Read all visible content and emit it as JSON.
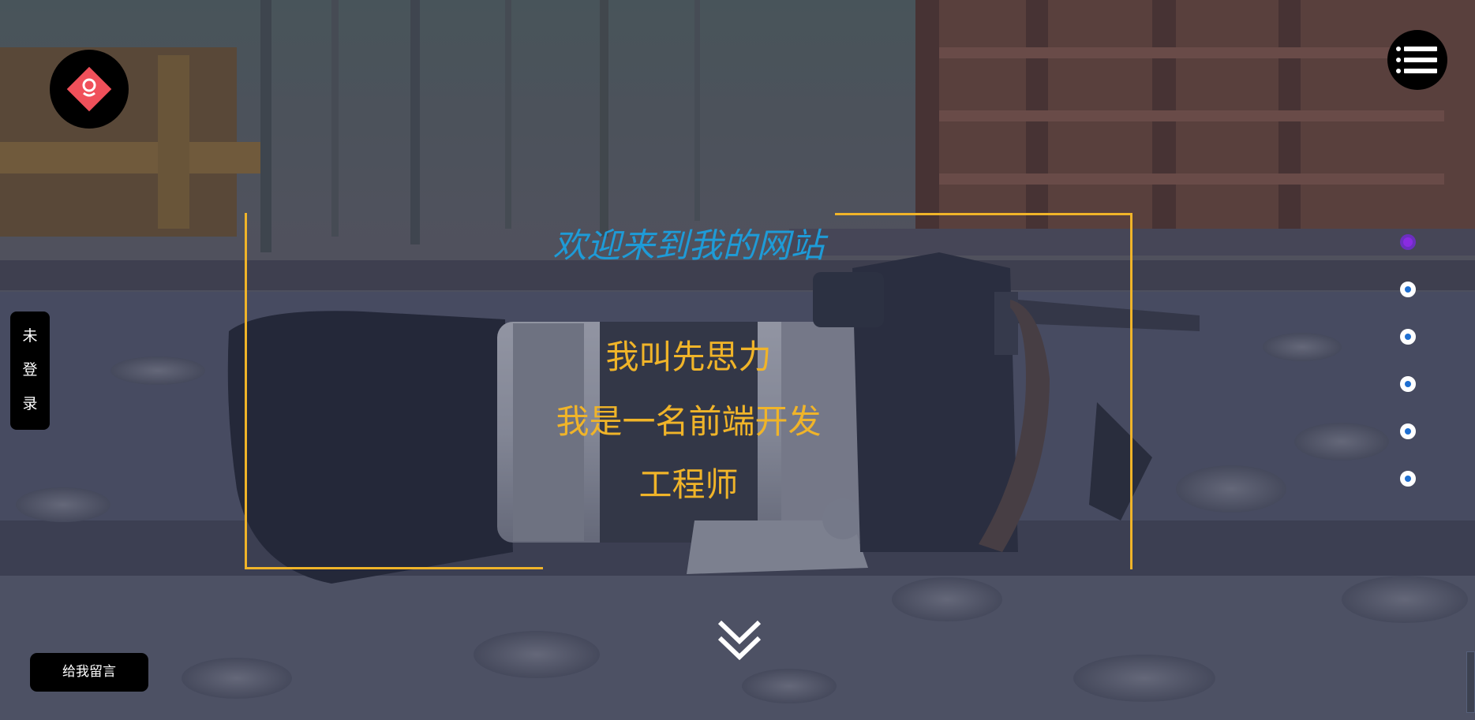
{
  "hero": {
    "welcome": "欢迎来到我的网站",
    "intro_lines": [
      "我叫先思力",
      "我是一名前端开发",
      "工程师"
    ]
  },
  "login_tab": {
    "chars": [
      "未",
      "登",
      "录"
    ]
  },
  "message_button": {
    "label": "给我留言"
  },
  "pager": {
    "count": 6,
    "active_index": 0
  },
  "icons": {
    "logo": "diamond-logo-icon",
    "menu": "hamburger-menu-icon",
    "scroll": "double-chevron-down-icon"
  },
  "colors": {
    "accent_yellow": "#f0b429",
    "welcome_blue": "#1e9bd7",
    "logo_red": "#f0505a",
    "dot_blue": "#1f6fd1",
    "dot_active": "#8a2be2"
  }
}
